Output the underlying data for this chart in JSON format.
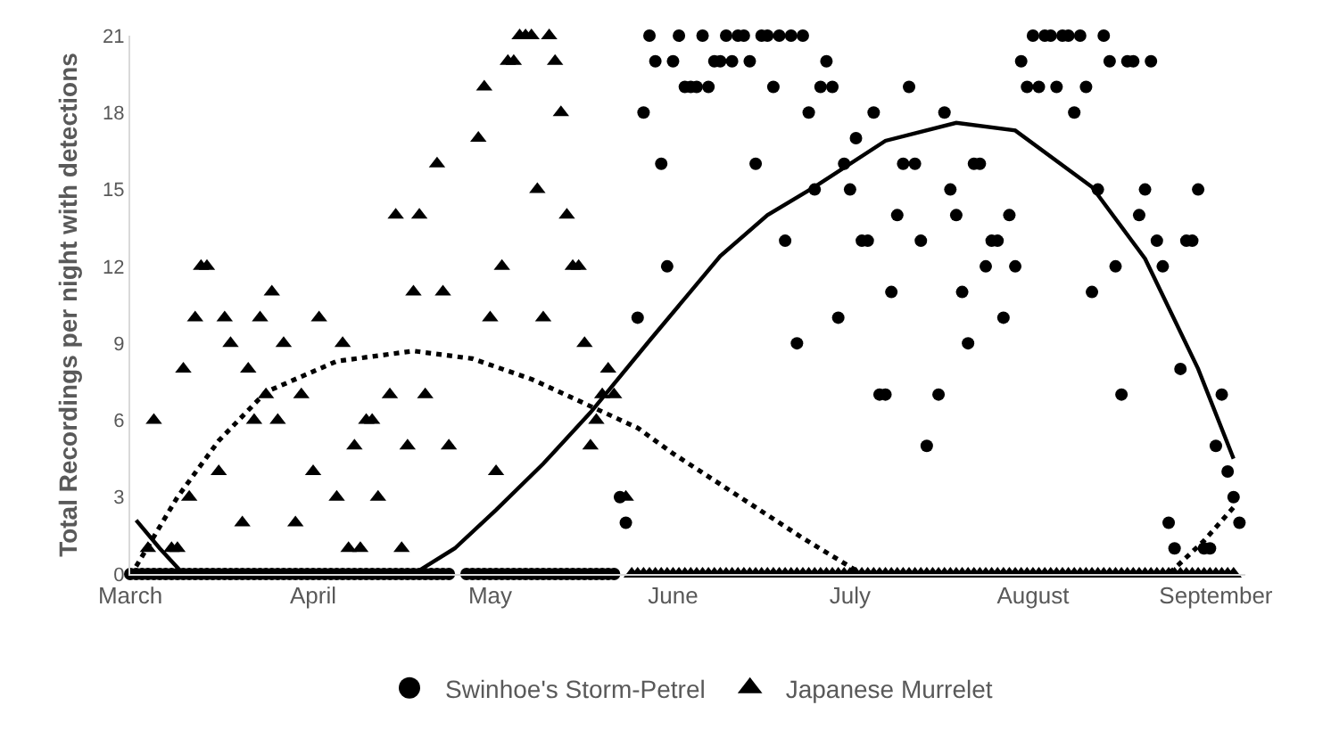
{
  "chart_data": {
    "type": "scatter",
    "ylabel": "Total Recordings per night with detections",
    "xlim": [
      "--03-01",
      "--09-06"
    ],
    "ylim": [
      0,
      21
    ],
    "xticks": [
      {
        "value": "--03-01",
        "label": "March"
      },
      {
        "value": "--04-01",
        "label": "April"
      },
      {
        "value": "--05-01",
        "label": "May"
      },
      {
        "value": "--06-01",
        "label": "June"
      },
      {
        "value": "--07-01",
        "label": "July"
      },
      {
        "value": "--08-01",
        "label": "August"
      },
      {
        "value": "--09-01",
        "label": "September"
      }
    ],
    "yticks": [
      0,
      3,
      6,
      9,
      12,
      15,
      18,
      21
    ],
    "legend": "bottom",
    "series": [
      {
        "name": "Swinhoe's Storm-Petrel",
        "color": "#000000",
        "marker": "circle",
        "x": [
          "--03-01",
          "--03-02",
          "--03-03",
          "--03-04",
          "--03-05",
          "--03-06",
          "--03-07",
          "--03-08",
          "--03-09",
          "--03-10",
          "--03-11",
          "--03-12",
          "--03-13",
          "--03-14",
          "--03-15",
          "--03-16",
          "--03-17",
          "--03-18",
          "--03-19",
          "--03-20",
          "--03-21",
          "--03-22",
          "--03-23",
          "--03-24",
          "--03-25",
          "--03-26",
          "--03-27",
          "--03-28",
          "--03-29",
          "--03-30",
          "--03-31",
          "--04-01",
          "--04-02",
          "--04-03",
          "--04-04",
          "--04-05",
          "--04-06",
          "--04-07",
          "--04-08",
          "--04-09",
          "--04-10",
          "--04-11",
          "--04-12",
          "--04-13",
          "--04-14",
          "--04-15",
          "--04-16",
          "--04-17",
          "--04-18",
          "--04-19",
          "--04-20",
          "--04-21",
          "--04-22",
          "--04-23",
          "--04-24",
          "--04-27",
          "--04-28",
          "--04-29",
          "--04-30",
          "--05-01",
          "--05-02",
          "--05-03",
          "--05-04",
          "--05-05",
          "--05-06",
          "--05-07",
          "--05-08",
          "--05-09",
          "--05-10",
          "--05-11",
          "--05-12",
          "--05-13",
          "--05-14",
          "--05-15",
          "--05-16",
          "--05-17",
          "--05-18",
          "--05-19",
          "--05-20",
          "--05-21",
          "--05-22",
          "--05-23",
          "--05-24",
          "--05-26",
          "--05-27",
          "--05-28",
          "--05-29",
          "--05-30",
          "--05-31",
          "--06-01",
          "--06-02",
          "--06-03",
          "--06-04",
          "--06-05",
          "--06-06",
          "--06-07",
          "--06-08",
          "--06-09",
          "--06-10",
          "--06-11",
          "--06-12",
          "--06-13",
          "--06-14",
          "--06-15",
          "--06-16",
          "--06-17",
          "--06-18",
          "--06-19",
          "--06-20",
          "--06-21",
          "--06-22",
          "--06-23",
          "--06-24",
          "--06-25",
          "--06-26",
          "--06-27",
          "--06-28",
          "--06-29",
          "--06-30",
          "--07-01",
          "--07-02",
          "--07-03",
          "--07-04",
          "--07-05",
          "--07-06",
          "--07-07",
          "--07-08",
          "--07-09",
          "--07-10",
          "--07-11",
          "--07-12",
          "--07-13",
          "--07-14",
          "--07-16",
          "--07-17",
          "--07-18",
          "--07-19",
          "--07-20",
          "--07-21",
          "--07-22",
          "--07-23",
          "--07-24",
          "--07-25",
          "--07-26",
          "--07-27",
          "--07-28",
          "--07-29",
          "--07-30",
          "--07-31",
          "--08-01",
          "--08-02",
          "--08-03",
          "--08-04",
          "--08-05",
          "--08-06",
          "--08-07",
          "--08-08",
          "--08-09",
          "--08-10",
          "--08-11",
          "--08-12",
          "--08-13",
          "--08-14",
          "--08-15",
          "--08-16",
          "--08-17",
          "--08-18",
          "--08-19",
          "--08-20",
          "--08-21",
          "--08-22",
          "--08-23",
          "--08-24",
          "--08-25",
          "--08-26",
          "--08-27",
          "--08-28",
          "--08-29",
          "--08-30",
          "--08-31",
          "--09-01",
          "--09-02",
          "--09-03",
          "--09-04",
          "--09-05"
        ],
        "values": [
          0,
          0,
          0,
          0,
          0,
          0,
          0,
          0,
          0,
          0,
          0,
          0,
          0,
          0,
          0,
          0,
          0,
          0,
          0,
          0,
          0,
          0,
          0,
          0,
          0,
          0,
          0,
          0,
          0,
          0,
          0,
          0,
          0,
          0,
          0,
          0,
          0,
          0,
          0,
          0,
          0,
          0,
          0,
          0,
          0,
          0,
          0,
          0,
          0,
          0,
          0,
          0,
          0,
          0,
          0,
          0,
          0,
          0,
          0,
          0,
          0,
          0,
          0,
          0,
          0,
          0,
          0,
          0,
          0,
          0,
          0,
          0,
          0,
          0,
          0,
          0,
          0,
          0,
          0,
          0,
          0,
          3,
          2,
          10,
          18,
          21,
          20,
          16,
          12,
          20,
          21,
          19,
          19,
          19,
          21,
          19,
          20,
          20,
          21,
          20,
          21,
          21,
          20,
          16,
          21,
          21,
          19,
          21,
          13,
          21,
          9,
          21,
          18,
          15,
          19,
          20,
          19,
          10,
          16,
          15,
          17,
          13,
          13,
          18,
          7,
          7,
          11,
          14,
          16,
          19,
          16,
          13,
          5,
          7,
          18,
          15,
          14,
          11,
          9,
          16,
          16,
          12,
          13,
          13,
          10,
          14,
          12,
          20,
          19,
          21,
          19,
          21,
          21,
          19,
          21,
          21,
          18,
          21,
          19,
          11,
          15,
          21,
          20,
          12,
          7,
          20,
          20,
          14,
          15,
          20,
          13,
          12,
          2,
          1,
          8,
          13,
          13,
          15,
          1,
          1,
          5,
          7,
          4,
          3,
          2
        ]
      },
      {
        "name": "Japanese Murrelet",
        "color": "#000000",
        "marker": "triangle",
        "x": [
          "--03-04",
          "--03-05",
          "--03-08",
          "--03-09",
          "--03-10",
          "--03-11",
          "--03-12",
          "--03-13",
          "--03-14",
          "--03-16",
          "--03-17",
          "--03-18",
          "--03-20",
          "--03-21",
          "--03-22",
          "--03-23",
          "--03-24",
          "--03-25",
          "--03-26",
          "--03-27",
          "--03-29",
          "--03-30",
          "--04-01",
          "--04-02",
          "--04-05",
          "--04-06",
          "--04-07",
          "--04-08",
          "--04-09",
          "--04-10",
          "--04-11",
          "--04-12",
          "--04-14",
          "--04-15",
          "--04-16",
          "--04-17",
          "--04-18",
          "--04-19",
          "--04-20",
          "--04-22",
          "--04-23",
          "--04-24",
          "--04-29",
          "--04-30",
          "--05-01",
          "--05-02",
          "--05-03",
          "--05-04",
          "--05-05",
          "--05-06",
          "--05-07",
          "--05-08",
          "--05-09",
          "--05-10",
          "--05-11",
          "--05-12",
          "--05-13",
          "--05-14",
          "--05-15",
          "--05-16",
          "--05-17",
          "--05-18",
          "--05-19",
          "--05-20",
          "--05-21",
          "--05-22",
          "--05-24",
          "--05-25",
          "--05-26",
          "--05-27",
          "--05-28",
          "--05-29",
          "--05-30",
          "--05-31",
          "--06-01",
          "--06-02",
          "--06-03",
          "--06-04",
          "--06-05",
          "--06-06",
          "--06-07",
          "--06-08",
          "--06-09",
          "--06-10",
          "--06-11",
          "--06-12",
          "--06-13",
          "--06-14",
          "--06-15",
          "--06-16",
          "--06-17",
          "--06-18",
          "--06-19",
          "--06-20",
          "--06-21",
          "--06-22",
          "--06-23",
          "--06-24",
          "--06-25",
          "--06-26",
          "--06-27",
          "--06-28",
          "--06-29",
          "--06-30",
          "--07-01",
          "--07-02",
          "--07-03",
          "--07-04",
          "--07-05",
          "--07-06",
          "--07-07",
          "--07-08",
          "--07-09",
          "--07-10",
          "--07-11",
          "--07-12",
          "--07-13",
          "--07-14",
          "--07-15",
          "--07-16",
          "--07-17",
          "--07-18",
          "--07-19",
          "--07-20",
          "--07-21",
          "--07-22",
          "--07-23",
          "--07-24",
          "--07-25",
          "--07-26",
          "--07-27",
          "--07-28",
          "--07-29",
          "--07-30",
          "--07-31",
          "--08-01",
          "--08-02",
          "--08-03",
          "--08-04",
          "--08-05",
          "--08-06",
          "--08-07",
          "--08-08",
          "--08-09",
          "--08-10",
          "--08-11",
          "--08-12",
          "--08-13",
          "--08-14",
          "--08-15",
          "--08-16",
          "--08-17",
          "--08-18",
          "--08-19",
          "--08-20",
          "--08-21",
          "--08-22",
          "--08-23",
          "--08-24",
          "--08-25",
          "--08-26",
          "--08-27",
          "--08-28",
          "--08-29",
          "--08-30",
          "--08-31",
          "--09-01",
          "--09-02",
          "--09-03",
          "--09-04"
        ],
        "values": [
          1,
          6,
          1,
          1,
          8,
          3,
          10,
          12,
          12,
          4,
          10,
          9,
          2,
          8,
          6,
          10,
          7,
          11,
          6,
          9,
          2,
          7,
          4,
          10,
          3,
          9,
          1,
          5,
          1,
          6,
          6,
          3,
          7,
          14,
          1,
          5,
          11,
          14,
          7,
          16,
          11,
          5,
          17,
          19,
          10,
          4,
          12,
          20,
          20,
          21,
          21,
          21,
          15,
          10,
          21,
          20,
          18,
          14,
          12,
          12,
          9,
          5,
          6,
          7,
          8,
          7,
          3,
          0,
          0,
          0,
          0,
          0,
          0,
          0,
          0,
          0,
          0,
          0,
          0,
          0,
          0,
          0,
          0,
          0,
          0,
          0,
          0,
          0,
          0,
          0,
          0,
          0,
          0,
          0,
          0,
          0,
          0,
          0,
          0,
          0,
          0,
          0,
          0,
          0,
          0,
          0,
          0,
          0,
          0,
          0,
          0,
          0,
          0,
          0,
          0,
          0,
          0,
          0,
          0,
          0,
          0,
          0,
          0,
          0,
          0,
          0,
          0,
          0,
          0,
          0,
          0,
          0,
          0,
          0,
          0,
          0,
          0,
          0,
          0,
          0,
          0,
          0,
          0,
          0,
          0,
          0,
          0,
          0,
          0,
          0,
          0,
          0,
          0,
          0,
          0,
          0,
          0,
          0,
          0,
          0,
          0,
          0,
          0,
          0,
          0,
          0,
          0,
          0,
          0,
          0
        ]
      },
      {
        "type": "line",
        "color": "#000000",
        "line_style": "solid",
        "marker": "none",
        "x": [
          "--03-02",
          "--03-06",
          "--03-10",
          "--04-18",
          "--04-25",
          "--05-02",
          "--05-10",
          "--05-18",
          "--05-28",
          "--06-09",
          "--06-17",
          "--06-25",
          "--07-07",
          "--07-19",
          "--07-29",
          "--08-11",
          "--08-20",
          "--08-29",
          "--09-04"
        ],
        "values": [
          2.1,
          1.0,
          0,
          0,
          1.0,
          2.5,
          4.3,
          6.3,
          9.1,
          12.4,
          14.0,
          15.1,
          16.9,
          17.6,
          17.3,
          15.1,
          12.3,
          8,
          4.5
        ]
      },
      {
        "type": "line",
        "color": "#000000",
        "line_style": "dotted",
        "marker": "none",
        "x": [
          "--03-02",
          "--03-09",
          "--03-16",
          "--03-24",
          "--04-05",
          "--04-18",
          "--04-28",
          "--05-08",
          "--05-26",
          "--06-01",
          "--06-13",
          "--06-23",
          "--07-03",
          "--08-24",
          "--08-30",
          "--09-04"
        ],
        "values": [
          0.3,
          3.0,
          5.2,
          7.1,
          8.3,
          8.7,
          8.4,
          7.6,
          5.7,
          4.7,
          2.9,
          1.4,
          0,
          0,
          1.3,
          2.6
        ]
      }
    ]
  }
}
